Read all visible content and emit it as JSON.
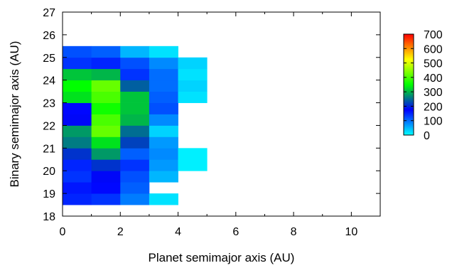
{
  "chart_data": {
    "type": "heatmap",
    "xlabel": "Planet semimajor axis (AU)",
    "ylabel": "Binary semimajor axis (AU)",
    "xlim": [
      0,
      11
    ],
    "ylim": [
      18,
      27
    ],
    "x_ticks": [
      0,
      2,
      4,
      6,
      8,
      10
    ],
    "y_ticks": [
      18,
      19,
      20,
      21,
      22,
      23,
      24,
      25,
      26,
      27
    ],
    "cell_width": 1,
    "cell_height": 0.5,
    "colorbar": {
      "min": 0,
      "max": 700,
      "ticks": [
        0,
        100,
        200,
        300,
        400,
        500,
        600,
        700
      ],
      "placement": "right",
      "colors": [
        "#00ffff",
        "#0000ff",
        "#00ff00",
        "#ffff00",
        "#ff0000"
      ]
    },
    "grid": false,
    "rows": [
      {
        "y0": 18.5,
        "values": [
          150,
          140,
          90,
          20
        ]
      },
      {
        "y0": 19.0,
        "values": [
          160,
          170,
          110
        ]
      },
      {
        "y0": 19.5,
        "values": [
          140,
          180,
          120,
          50
        ]
      },
      {
        "y0": 20.0,
        "values": [
          150,
          210,
          140,
          70,
          10
        ]
      },
      {
        "y0": 20.5,
        "values": [
          210,
          280,
          110,
          80,
          10
        ]
      },
      {
        "y0": 21.0,
        "values": [
          260,
          330,
          220,
          70
        ]
      },
      {
        "y0": 21.5,
        "values": [
          280,
          420,
          250,
          30
        ]
      },
      {
        "y0": 22.0,
        "values": [
          180,
          400,
          300,
          80
        ]
      },
      {
        "y0": 22.5,
        "values": [
          170,
          360,
          310,
          120
        ]
      },
      {
        "y0": 23.0,
        "values": [
          330,
          400,
          310,
          110,
          20
        ]
      },
      {
        "y0": 23.5,
        "values": [
          350,
          420,
          240,
          100,
          30
        ]
      },
      {
        "y0": 24.0,
        "values": [
          310,
          300,
          140,
          100,
          20
        ]
      },
      {
        "y0": 24.5,
        "values": [
          140,
          150,
          120,
          80,
          30
        ]
      },
      {
        "y0": 25.0,
        "values": [
          120,
          110,
          50,
          20
        ]
      }
    ]
  }
}
